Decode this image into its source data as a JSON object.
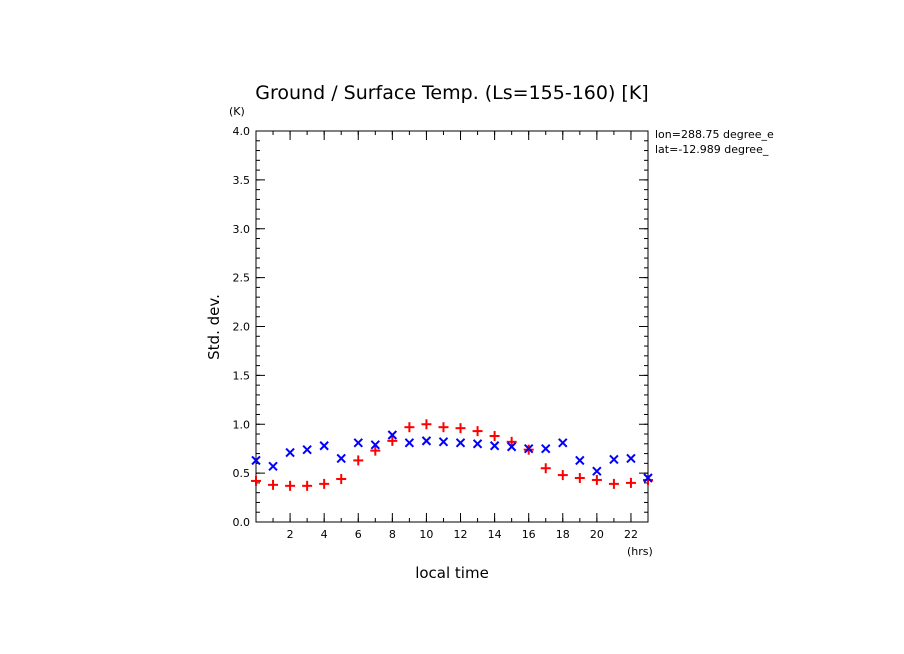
{
  "chart_data": {
    "type": "scatter",
    "title": "Ground / Surface Temp. (Ls=155-160) [K]",
    "xlabel": "local time",
    "xunit": "(hrs)",
    "ylabel": "Std. dev.",
    "yunit": "(K)",
    "xlim": [
      0,
      23
    ],
    "ylim": [
      0,
      4
    ],
    "xticks": [
      2,
      4,
      6,
      8,
      10,
      12,
      14,
      16,
      18,
      20,
      22
    ],
    "yticks": [
      0.0,
      0.5,
      1.0,
      1.5,
      2.0,
      2.5,
      3.0,
      3.5,
      4.0
    ],
    "ytick_labels": [
      "0.0",
      "0.5",
      "1.0",
      "1.5",
      "2.0",
      "2.5",
      "3.0",
      "3.5",
      "4.0"
    ],
    "annotations": [
      "lon=288.75 degree_e",
      "lat=-12.989 degree_"
    ],
    "grid": false,
    "series": [
      {
        "marker": "plus",
        "color": "#ff0000",
        "x": [
          0,
          1,
          2,
          3,
          4,
          5,
          6,
          7,
          8,
          9,
          10,
          11,
          12,
          13,
          14,
          15,
          16,
          17,
          18,
          19,
          20,
          21,
          22,
          23
        ],
        "y": [
          0.42,
          0.38,
          0.37,
          0.37,
          0.39,
          0.44,
          0.63,
          0.73,
          0.83,
          0.97,
          1.0,
          0.97,
          0.96,
          0.93,
          0.88,
          0.82,
          0.74,
          0.55,
          0.48,
          0.45,
          0.43,
          0.39,
          0.4,
          0.43
        ]
      },
      {
        "marker": "cross",
        "color": "#0000ff",
        "x": [
          0,
          1,
          2,
          3,
          4,
          5,
          6,
          7,
          8,
          9,
          10,
          11,
          12,
          13,
          14,
          15,
          16,
          17,
          18,
          19,
          20,
          21,
          22,
          23
        ],
        "y": [
          0.63,
          0.57,
          0.71,
          0.74,
          0.78,
          0.65,
          0.81,
          0.79,
          0.89,
          0.81,
          0.83,
          0.82,
          0.81,
          0.8,
          0.78,
          0.77,
          0.75,
          0.75,
          0.81,
          0.63,
          0.52,
          0.64,
          0.65,
          0.45
        ]
      }
    ]
  }
}
